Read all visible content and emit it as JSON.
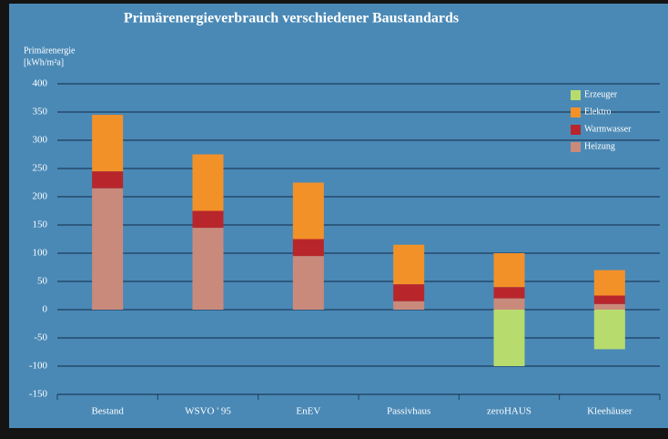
{
  "chart_data": {
    "type": "stacked-bar",
    "title": "Primärenergieverbrauch verschiedener Baustandards",
    "ylabel": [
      "Primärenergie",
      "[kWh/m²a]"
    ],
    "categories": [
      "Bestand",
      "WSVO ' 95",
      "EnEV",
      "Passivhaus",
      "zeroHAUS",
      "Kleehäuser"
    ],
    "series": [
      {
        "name": "Heizung",
        "color": "#c98a7c",
        "values": [
          215,
          145,
          95,
          15,
          20,
          10
        ]
      },
      {
        "name": "Warmwasser",
        "color": "#b8262b",
        "values": [
          30,
          30,
          30,
          30,
          20,
          15
        ]
      },
      {
        "name": "Elektro",
        "color": "#f39129",
        "values": [
          100,
          100,
          100,
          70,
          60,
          45
        ]
      },
      {
        "name": "Erzeuger",
        "color": "#b7dc6d",
        "values": [
          null,
          null,
          null,
          null,
          -100,
          -70
        ]
      }
    ],
    "ylim": [
      -150,
      400
    ],
    "yticks": [
      -150,
      -100,
      -50,
      0,
      50,
      100,
      150,
      200,
      250,
      300,
      350,
      400
    ],
    "grid": true,
    "legend": "top-right"
  }
}
